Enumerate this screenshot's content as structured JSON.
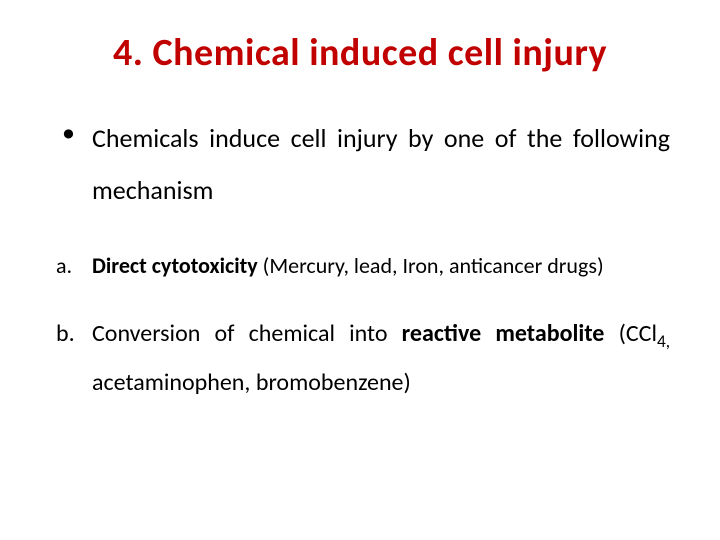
{
  "title": {
    "text": "4. Chemical induced cell injury",
    "color": "#c10000",
    "fontsize": 38,
    "fontweight": 700
  },
  "body_color": "#000000",
  "bullets": [
    {
      "text": "Chemicals induce cell injury by one of the following mechanism",
      "fontsize": 26
    }
  ],
  "subitems": [
    {
      "marker": "a.",
      "lead_bold": "Direct cytotoxicity",
      "rest": " (Mercury, lead, Iron, anticancer drugs)",
      "fontsize": 22
    },
    {
      "marker": "b.",
      "pre": "Conversion of chemical into ",
      "lead_bold": "reactive metabolite",
      "post_pre": " (CCl",
      "sub": "4,",
      "post": " acetaminophen, bromobenzene)",
      "fontsize": 24
    }
  ]
}
